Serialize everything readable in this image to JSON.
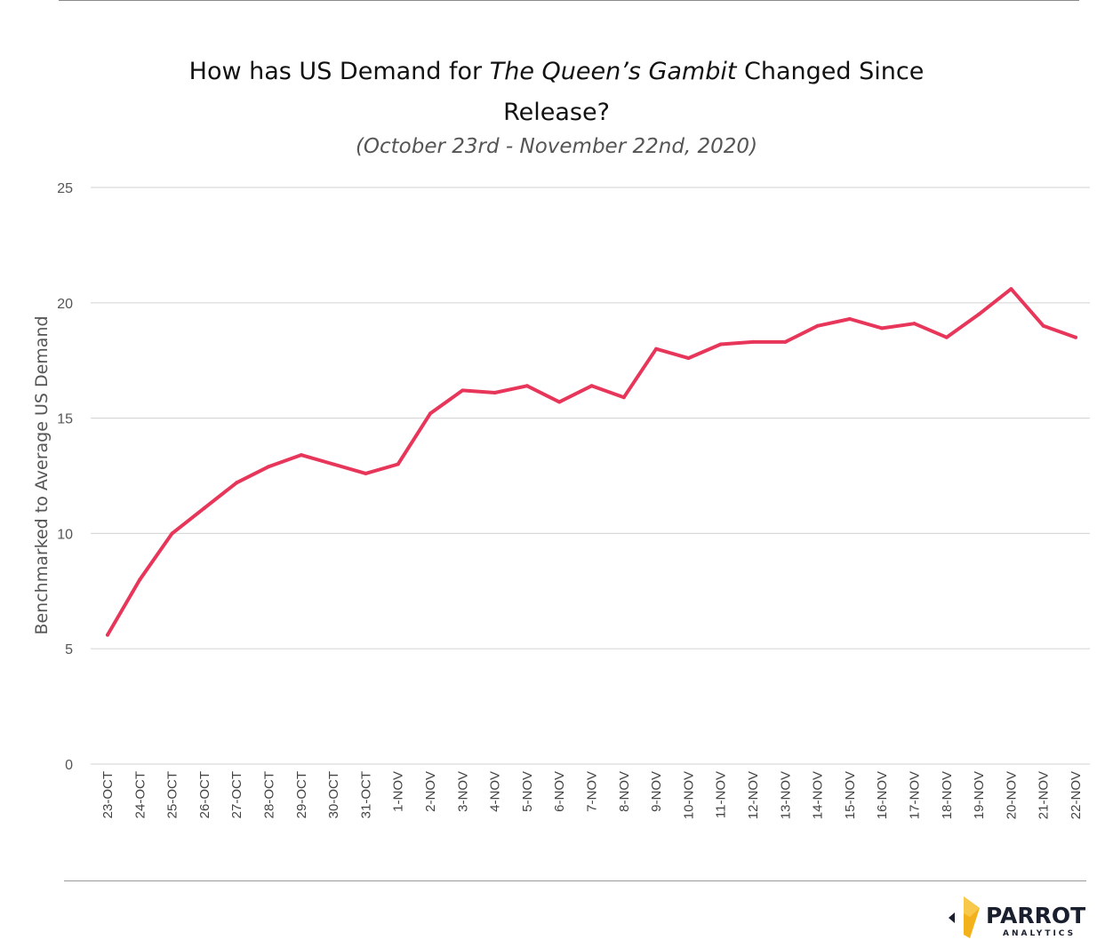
{
  "title": {
    "prefix": "How has US Demand for ",
    "italic": "The Queen’s Gambit",
    "suffix": " Changed Since",
    "line2": "Release?"
  },
  "subtitle": "(October 23rd - November 22nd, 2020)",
  "colors": {
    "line": "#e8365a",
    "grid": "#d9d9d9",
    "logo_dark": "#1a1f2e",
    "logo_gold": "#f3b21b"
  },
  "logo": {
    "word": "PARROT",
    "sub": "ANALYTICS"
  },
  "chart_data": {
    "type": "line",
    "ylabel": "Benchmarked to Average US Demand",
    "xlabel": "",
    "ylim": [
      0,
      25
    ],
    "yticks": [
      0,
      5,
      10,
      15,
      20,
      25
    ],
    "grid": true,
    "categories": [
      "23-OCT",
      "24-OCT",
      "25-OCT",
      "26-OCT",
      "27-OCT",
      "28-OCT",
      "29-OCT",
      "30-OCT",
      "31-OCT",
      "1-NOV",
      "2-NOV",
      "3-NOV",
      "4-NOV",
      "5-NOV",
      "6-NOV",
      "7-NOV",
      "8-NOV",
      "9-NOV",
      "10-NOV",
      "11-NOV",
      "12-NOV",
      "13-NOV",
      "14-NOV",
      "15-NOV",
      "16-NOV",
      "17-NOV",
      "18-NOV",
      "19-NOV",
      "20-NOV",
      "21-NOV",
      "22-NOV"
    ],
    "series": [
      {
        "values": [
          5.6,
          8.0,
          10.0,
          11.1,
          12.2,
          12.9,
          13.4,
          13.0,
          12.6,
          13.0,
          15.2,
          16.2,
          16.1,
          16.4,
          15.7,
          16.4,
          15.9,
          18.0,
          17.6,
          18.2,
          18.3,
          18.3,
          19.0,
          19.3,
          18.9,
          19.1,
          18.5,
          19.5,
          20.6,
          19.0,
          18.5
        ]
      }
    ]
  }
}
